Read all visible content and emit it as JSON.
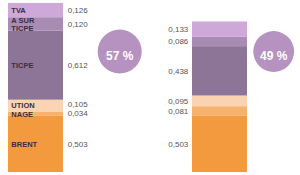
{
  "chart_data": {
    "type": "bar",
    "stacked": true,
    "data_labels": true,
    "tick_labels": false,
    "categories": [
      null,
      null
    ],
    "series": [
      {
        "name": "BRENT",
        "color": "#f39a3f",
        "values": [
          0.503,
          0.503
        ],
        "value_labels": [
          "0,503",
          "0,503"
        ]
      },
      {
        "name": "NAGE",
        "color": "#f6b26f",
        "values": [
          0.034,
          0.081
        ],
        "value_labels": [
          "0,034",
          "0,081"
        ]
      },
      {
        "name": "UTION",
        "color": "#fbd3b0",
        "values": [
          0.105,
          0.095
        ],
        "value_labels": [
          "0,105",
          "0,095"
        ]
      },
      {
        "name": "TICPE",
        "color": "#8c7596",
        "values": [
          0.612,
          0.438
        ],
        "value_labels": [
          "0,612",
          "0,438"
        ]
      },
      {
        "name": "A SUR\nTICPE",
        "color": "#a98bb3",
        "values": [
          0.12,
          0.086
        ],
        "value_labels": [
          "0,120",
          "0,086"
        ]
      },
      {
        "name": "TVA",
        "color": "#cda8d8",
        "values": [
          0.126,
          0.133
        ],
        "value_labels": [
          "0,126",
          "0,133"
        ]
      }
    ],
    "shares": [
      57,
      49
    ],
    "share_labels": [
      "57 %",
      "49 %"
    ]
  }
}
